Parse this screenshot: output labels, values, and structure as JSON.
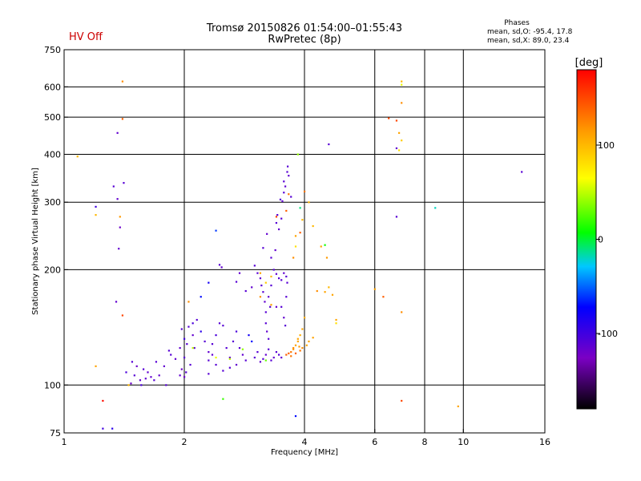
{
  "header": {
    "status": "HV Off",
    "status_color": "#cc0000",
    "title_line1": "Tromsø 20150826 01:54:00–01:55:43",
    "title_line2": "RwPretec (8p)",
    "stats_title": "Phases",
    "stats_line1": "mean, sd,O: -95.4, 17.8",
    "stats_line2": "mean, sd,X: 89.0, 23.4"
  },
  "chart_data": {
    "type": "scatter",
    "xlabel": "Frequency [MHz]",
    "ylabel": "Stationary phase Virtual Height [km]",
    "xscale": "log",
    "yscale": "log",
    "xlim": [
      1,
      16
    ],
    "ylim": [
      75,
      750
    ],
    "xticks": [
      1,
      2,
      4,
      6,
      8,
      10,
      16
    ],
    "xtick_labels": [
      "1",
      "2",
      "4",
      "6",
      "8",
      "10",
      "16"
    ],
    "yticks": [
      75,
      100,
      200,
      300,
      400,
      500,
      600,
      750
    ],
    "ytick_labels": [
      "75",
      "100",
      "200",
      "300",
      "400",
      "500",
      "600",
      "750"
    ],
    "xgrid": [
      2,
      4,
      6,
      8,
      10
    ],
    "ygrid": [
      100,
      200,
      300,
      400,
      500,
      600
    ],
    "colorbar": {
      "label": "[deg]",
      "range": [
        -180,
        180
      ],
      "ticks": [
        -100,
        0,
        100
      ],
      "tick_labels": [
        "-100",
        "0",
        "100"
      ]
    },
    "series": [
      {
        "mode": "O",
        "points": [
          [
            1.33,
            330,
            -110
          ],
          [
            1.2,
            292,
            -100
          ],
          [
            1.36,
            455,
            -115
          ],
          [
            1.41,
            337,
            -110
          ],
          [
            1.36,
            306,
            -115
          ],
          [
            1.37,
            227,
            -115
          ],
          [
            1.38,
            258,
            -120
          ],
          [
            1.35,
            165,
            -115
          ],
          [
            1.25,
            77,
            -100
          ],
          [
            1.32,
            77,
            -90
          ],
          [
            1.43,
            108,
            -105
          ],
          [
            1.55,
            103,
            -115
          ],
          [
            1.6,
            104,
            -115
          ],
          [
            1.5,
            106,
            -110
          ],
          [
            1.47,
            101,
            -120
          ],
          [
            1.58,
            110,
            -110
          ],
          [
            1.65,
            105,
            -115
          ],
          [
            1.52,
            112,
            -120
          ],
          [
            1.68,
            103,
            -110
          ],
          [
            1.62,
            108,
            -115
          ],
          [
            1.7,
            115,
            -110
          ],
          [
            1.73,
            106,
            -115
          ],
          [
            1.56,
            100,
            -105
          ],
          [
            1.48,
            115,
            -110
          ],
          [
            1.78,
            112,
            -115
          ],
          [
            1.85,
            120,
            -110
          ],
          [
            1.9,
            117,
            -115
          ],
          [
            1.83,
            123,
            -110
          ],
          [
            1.95,
            125,
            -115
          ],
          [
            1.97,
            110,
            -120
          ],
          [
            2.0,
            118,
            -110
          ],
          [
            2.03,
            128,
            -110
          ],
          [
            2.05,
            142,
            -110
          ],
          [
            2.1,
            135,
            -115
          ],
          [
            2.0,
            132,
            -100
          ],
          [
            1.97,
            140,
            -110
          ],
          [
            2.07,
            113,
            -110
          ],
          [
            1.95,
            106,
            -115
          ],
          [
            2.0,
            105,
            -120
          ],
          [
            2.02,
            108,
            -110
          ],
          [
            2.1,
            145,
            -105
          ],
          [
            2.15,
            148,
            -110
          ],
          [
            2.2,
            138,
            -90
          ],
          [
            2.25,
            130,
            -110
          ],
          [
            2.12,
            125,
            -110
          ],
          [
            2.3,
            122,
            -115
          ],
          [
            2.35,
            128,
            -110
          ],
          [
            2.4,
            135,
            -105
          ],
          [
            2.45,
            145,
            -110
          ],
          [
            2.5,
            143,
            -110
          ],
          [
            2.3,
            116,
            -110
          ],
          [
            2.35,
            120,
            -115
          ],
          [
            2.4,
            113,
            -110
          ],
          [
            2.55,
            125,
            -110
          ],
          [
            2.6,
            118,
            -115
          ],
          [
            2.65,
            130,
            -110
          ],
          [
            2.7,
            138,
            -105
          ],
          [
            2.75,
            125,
            -110
          ],
          [
            2.8,
            120,
            -115
          ],
          [
            2.85,
            116,
            -110
          ],
          [
            2.9,
            135,
            -80
          ],
          [
            2.95,
            130,
            -70
          ],
          [
            3.0,
            118,
            -110
          ],
          [
            3.05,
            122,
            -110
          ],
          [
            3.1,
            115,
            -115
          ],
          [
            3.15,
            117,
            -110
          ],
          [
            3.2,
            120,
            -115
          ],
          [
            3.25,
            124,
            -110
          ],
          [
            3.3,
            116,
            -110
          ],
          [
            3.35,
            118,
            -115
          ],
          [
            3.4,
            122,
            -110
          ],
          [
            3.45,
            120,
            -110
          ],
          [
            3.5,
            118,
            -115
          ],
          [
            2.45,
            206,
            -110
          ],
          [
            2.48,
            203,
            -115
          ],
          [
            2.7,
            186,
            -110
          ],
          [
            2.75,
            196,
            -115
          ],
          [
            2.85,
            176,
            -110
          ],
          [
            2.95,
            180,
            -115
          ],
          [
            3.0,
            205,
            -110
          ],
          [
            3.05,
            196,
            -110
          ],
          [
            3.1,
            190,
            -115
          ],
          [
            3.12,
            182,
            -110
          ],
          [
            3.15,
            175,
            -110
          ],
          [
            3.18,
            165,
            -115
          ],
          [
            3.2,
            155,
            -110
          ],
          [
            3.2,
            145,
            -110
          ],
          [
            3.22,
            138,
            -115
          ],
          [
            3.25,
            132,
            -110
          ],
          [
            3.15,
            228,
            -110
          ],
          [
            3.22,
            248,
            -115
          ],
          [
            3.3,
            215,
            -110
          ],
          [
            3.35,
            200,
            -110
          ],
          [
            3.4,
            195,
            -115
          ],
          [
            3.45,
            190,
            -110
          ],
          [
            3.5,
            188,
            -110
          ],
          [
            3.55,
            196,
            -115
          ],
          [
            3.6,
            192,
            -110
          ],
          [
            3.62,
            185,
            -110
          ],
          [
            3.38,
            225,
            -115
          ],
          [
            3.4,
            265,
            -110
          ],
          [
            3.42,
            278,
            -110
          ],
          [
            3.45,
            255,
            -115
          ],
          [
            3.5,
            272,
            -110
          ],
          [
            3.48,
            305,
            -110
          ],
          [
            3.52,
            302,
            -115
          ],
          [
            3.55,
            318,
            -110
          ],
          [
            3.55,
            340,
            -110
          ],
          [
            3.58,
            330,
            -115
          ],
          [
            3.62,
            360,
            -110
          ],
          [
            3.63,
            372,
            -110
          ],
          [
            3.65,
            352,
            -115
          ],
          [
            3.7,
            310,
            -110
          ],
          [
            3.5,
            160,
            -110
          ],
          [
            3.55,
            150,
            -115
          ],
          [
            3.58,
            143,
            -110
          ],
          [
            3.3,
            182,
            -110
          ],
          [
            3.25,
            170,
            -115
          ],
          [
            3.28,
            160,
            -110
          ],
          [
            2.3,
            107,
            -110
          ],
          [
            2.5,
            109,
            -110
          ],
          [
            2.6,
            111,
            -110
          ],
          [
            2.7,
            113,
            -115
          ],
          [
            3.6,
            170,
            -110
          ],
          [
            3.4,
            160,
            -115
          ],
          [
            4.6,
            425,
            -110
          ],
          [
            6.8,
            415,
            -115
          ],
          [
            6.8,
            275,
            -110
          ],
          [
            14.0,
            360,
            -110
          ],
          [
            3.8,
            83,
            -70
          ],
          [
            8.5,
            290,
            -20
          ],
          [
            2.4,
            253,
            -60
          ],
          [
            2.2,
            170,
            -70
          ],
          [
            2.3,
            185,
            -80
          ],
          [
            1.8,
            100,
            -110
          ]
        ]
      },
      {
        "mode": "X",
        "points": [
          [
            1.4,
            620,
            120
          ],
          [
            1.4,
            495,
            140
          ],
          [
            1.08,
            395,
            100
          ],
          [
            1.2,
            278,
            100
          ],
          [
            1.38,
            275,
            115
          ],
          [
            1.2,
            112,
            110
          ],
          [
            1.4,
            152,
            150
          ],
          [
            1.25,
            91,
            175
          ],
          [
            2.5,
            92,
            20
          ],
          [
            9.7,
            88,
            110
          ],
          [
            7.0,
            91,
            150
          ],
          [
            7.0,
            620,
            100
          ],
          [
            7.0,
            608,
            60
          ],
          [
            6.8,
            490,
            150
          ],
          [
            6.9,
            455,
            110
          ],
          [
            7.0,
            435,
            90
          ],
          [
            6.9,
            410,
            80
          ],
          [
            7.0,
            545,
            120
          ],
          [
            6.5,
            497,
            150
          ],
          [
            7.0,
            155,
            120
          ],
          [
            6.3,
            170,
            140
          ],
          [
            6.0,
            178,
            110
          ],
          [
            3.85,
            400,
            40
          ],
          [
            3.9,
            290,
            -10
          ],
          [
            3.95,
            270,
            100
          ],
          [
            3.9,
            250,
            140
          ],
          [
            3.8,
            230,
            80
          ],
          [
            4.4,
            230,
            110
          ],
          [
            4.5,
            232,
            10
          ],
          [
            4.55,
            215,
            115
          ],
          [
            4.6,
            180,
            100
          ],
          [
            4.5,
            175,
            110
          ],
          [
            4.3,
            176,
            120
          ],
          [
            4.7,
            172,
            110
          ],
          [
            4.8,
            148,
            110
          ],
          [
            4.8,
            145,
            80
          ],
          [
            4.0,
            150,
            105
          ],
          [
            3.95,
            140,
            110
          ],
          [
            3.9,
            135,
            105
          ],
          [
            3.85,
            130,
            110
          ],
          [
            3.8,
            127,
            110
          ],
          [
            3.75,
            124,
            115
          ],
          [
            3.7,
            122,
            130
          ],
          [
            3.8,
            121,
            140
          ],
          [
            3.9,
            123,
            130
          ],
          [
            3.95,
            125,
            120
          ],
          [
            4.05,
            127,
            110
          ],
          [
            4.1,
            130,
            110
          ],
          [
            4.2,
            133,
            110
          ],
          [
            3.65,
            121,
            140
          ],
          [
            3.6,
            120,
            140
          ],
          [
            3.7,
            119,
            130
          ],
          [
            3.75,
            125,
            120
          ],
          [
            3.85,
            132,
            110
          ],
          [
            3.88,
            126,
            115
          ],
          [
            3.1,
            196,
            110
          ],
          [
            3.3,
            192,
            100
          ],
          [
            3.3,
            162,
            110
          ],
          [
            2.1,
            125,
            50
          ],
          [
            2.4,
            118,
            60
          ],
          [
            2.8,
            124,
            40
          ],
          [
            2.6,
            117,
            50
          ],
          [
            3.2,
            116,
            30
          ],
          [
            3.6,
            285,
            140
          ],
          [
            3.8,
            245,
            110
          ],
          [
            3.75,
            215,
            120
          ],
          [
            4.1,
            300,
            100
          ],
          [
            4.0,
            320,
            130
          ],
          [
            3.1,
            170,
            120
          ],
          [
            3.2,
            185,
            90
          ],
          [
            2.05,
            165,
            120
          ],
          [
            1.45,
            100,
            100
          ],
          [
            4.2,
            260,
            100
          ],
          [
            3.65,
            315,
            130
          ],
          [
            3.4,
            275,
            150
          ]
        ]
      }
    ]
  }
}
